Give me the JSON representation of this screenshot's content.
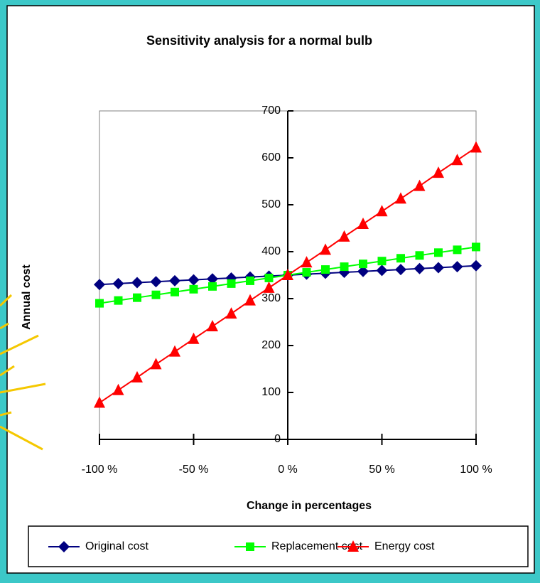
{
  "chart_data": {
    "type": "line",
    "title": "Sensitivity analysis for a normal bulb",
    "x_label": "Change in percentages",
    "y_label": "Annual cost",
    "x": [
      -100,
      -90,
      -80,
      -70,
      -60,
      -50,
      -40,
      -30,
      -20,
      -10,
      0,
      10,
      20,
      30,
      40,
      50,
      60,
      70,
      80,
      90,
      100
    ],
    "series": [
      {
        "name": "Original cost",
        "color": "#000080",
        "marker": "diamond",
        "values": [
          330,
          332,
          334,
          336,
          338,
          340,
          342,
          344,
          346,
          348,
          350,
          352,
          354,
          356,
          358,
          360,
          362,
          364,
          366,
          368,
          370
        ]
      },
      {
        "name": "Replacement cost",
        "color": "#00ff00",
        "marker": "square",
        "values": [
          290,
          296,
          302,
          308,
          314,
          320,
          326,
          332,
          338,
          344,
          350,
          356,
          362,
          368,
          374,
          380,
          386,
          392,
          398,
          404,
          410
        ]
      },
      {
        "name": "Energy cost",
        "color": "#ff0000",
        "marker": "triangle",
        "values": [
          78,
          105,
          132,
          160,
          187,
          214,
          241,
          268,
          296,
          323,
          350,
          377,
          404,
          432,
          459,
          486,
          513,
          540,
          568,
          595,
          622
        ]
      }
    ],
    "xlim": [
      -100,
      100
    ],
    "xticks": [
      {
        "value": -100,
        "label": "-100 %"
      },
      {
        "value": -50,
        "label": "-50 %"
      },
      {
        "value": 0,
        "label": "0 %"
      },
      {
        "value": 50,
        "label": "50 %"
      },
      {
        "value": 100,
        "label": "100 %"
      }
    ],
    "ylim": [
      0,
      700
    ],
    "yticks": [
      0,
      100,
      200,
      300,
      400,
      500,
      600,
      700
    ],
    "legend": "bottom"
  }
}
